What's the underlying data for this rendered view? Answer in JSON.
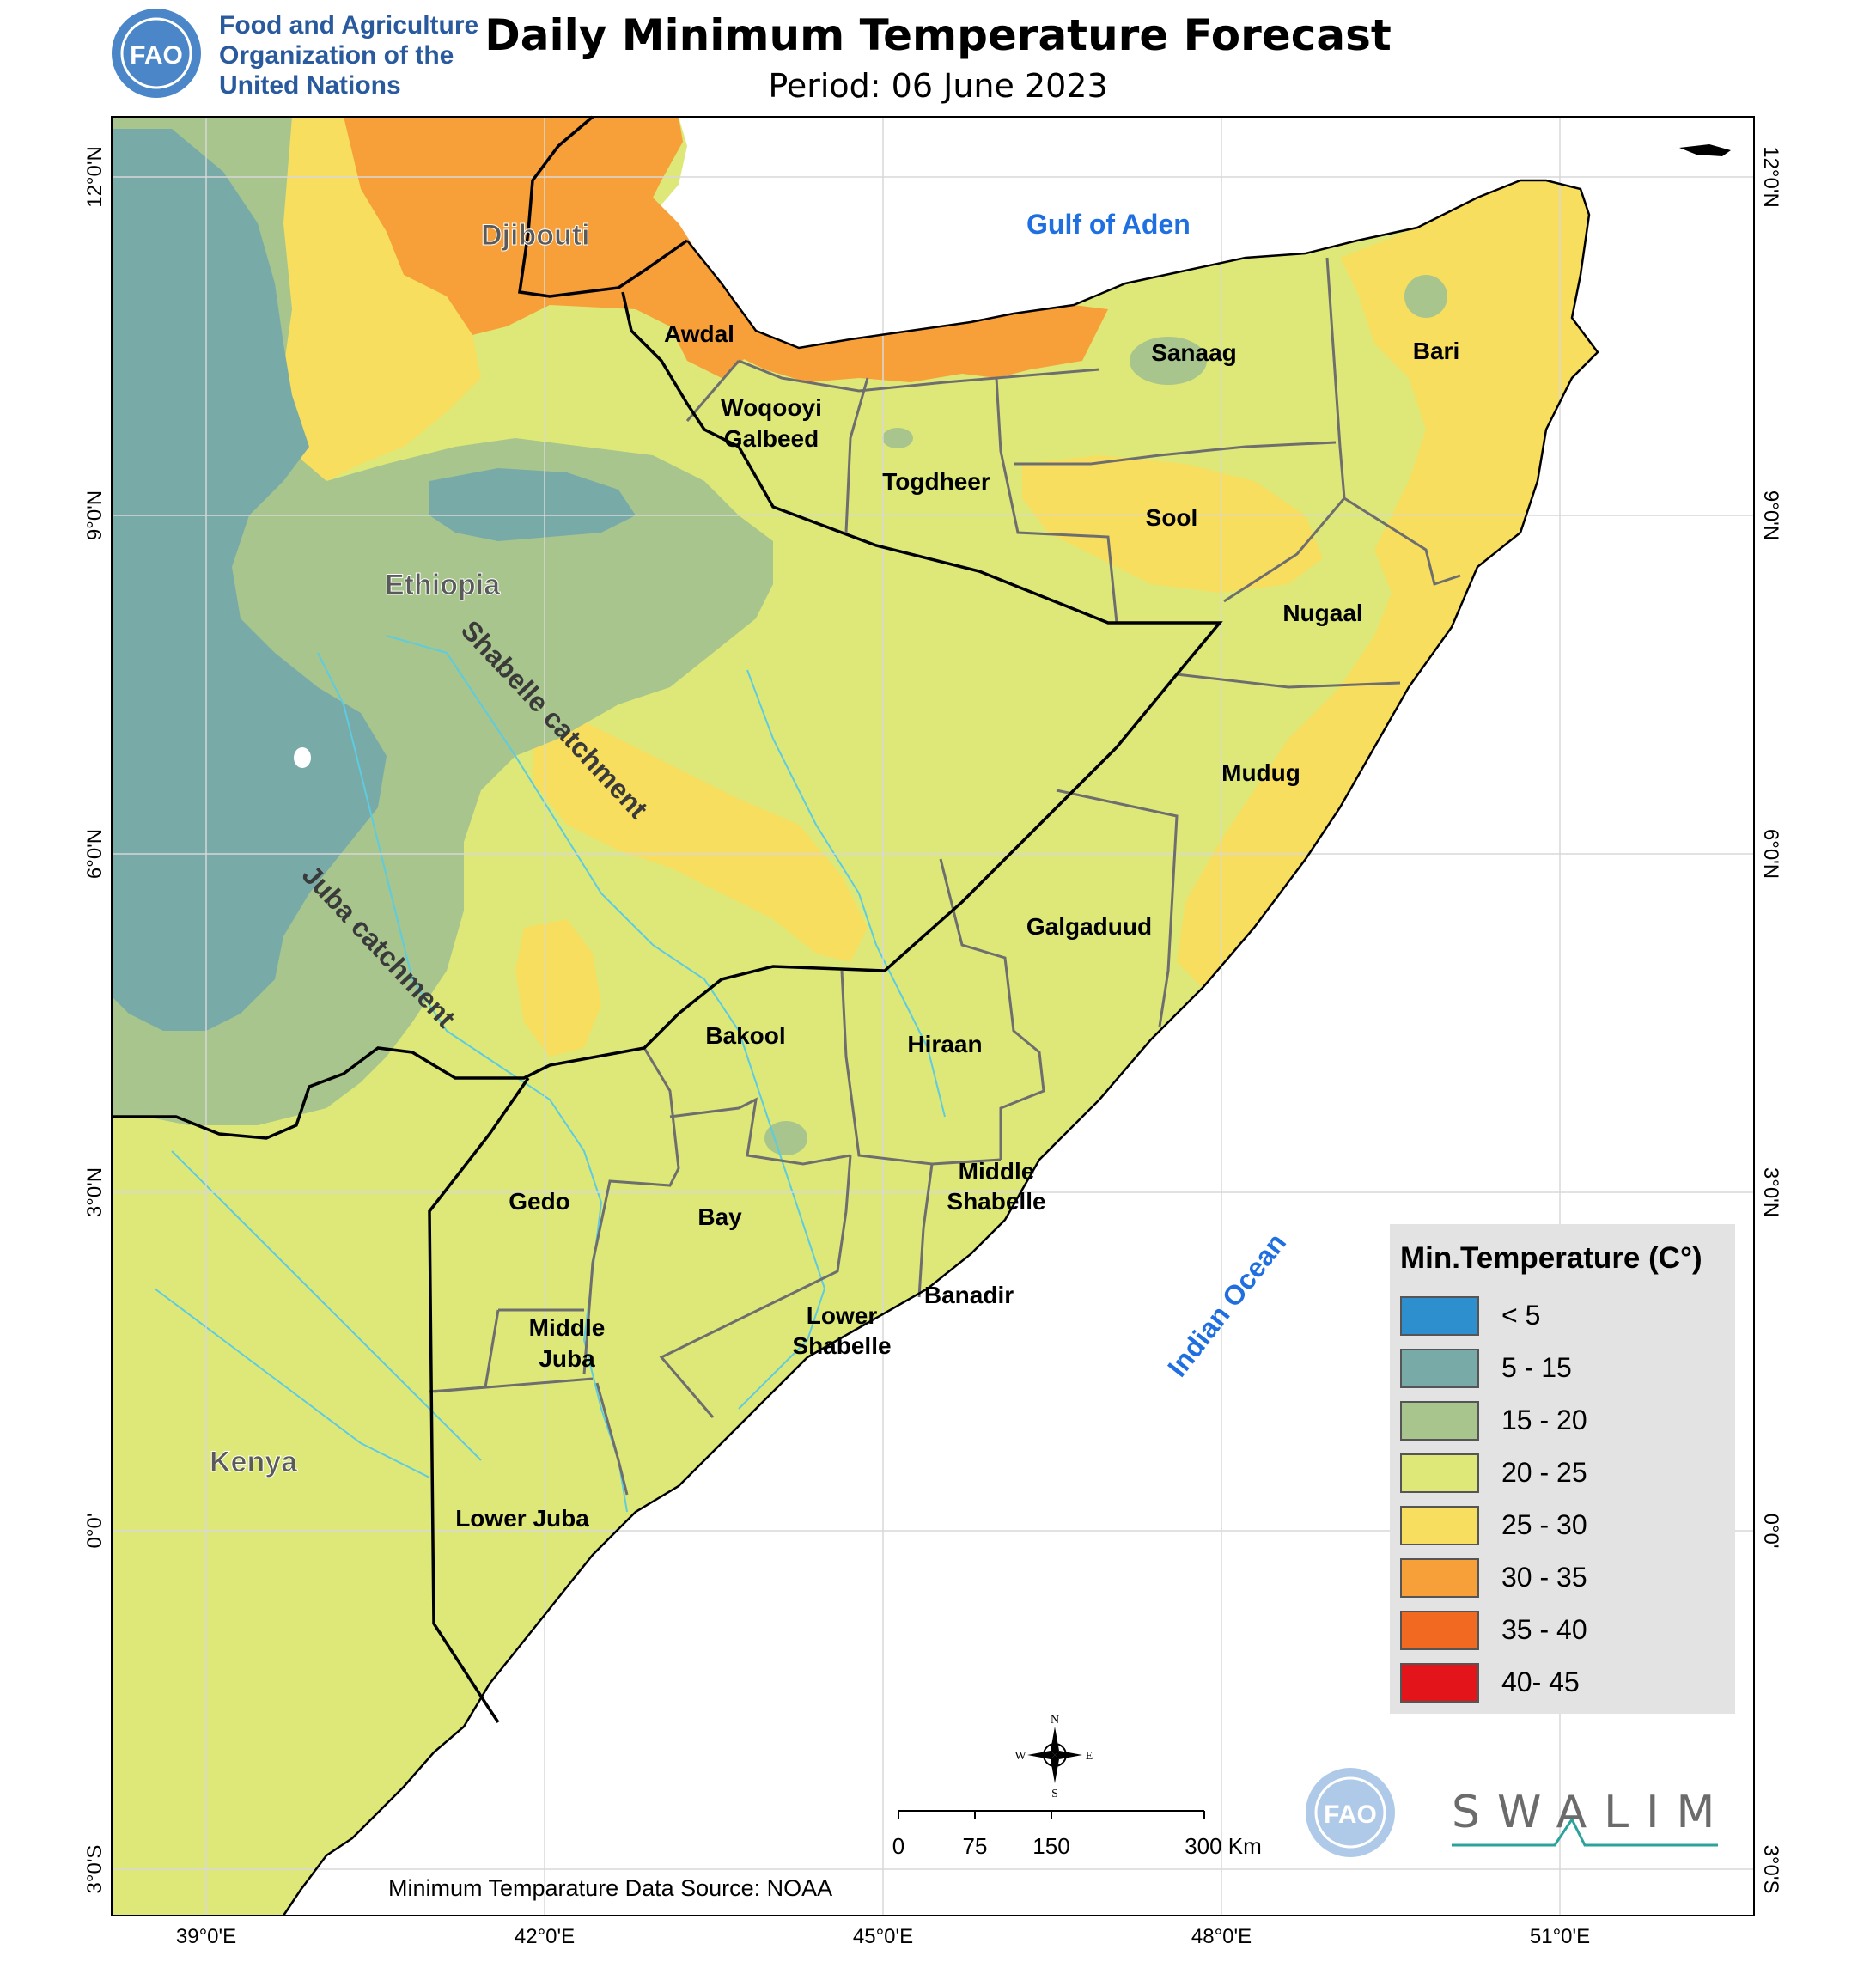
{
  "header": {
    "org_line1": "Food and Agriculture",
    "org_line2": "Organization of the",
    "org_line3": "United Nations",
    "fao_logo_text": "FAO",
    "title": "Daily Minimum Temperature Forecast",
    "subtitle": "Period: 06 June 2023"
  },
  "map": {
    "water_labels": [
      "Gulf of Aden",
      "Indian Ocean"
    ],
    "country_labels": [
      "Djibouti",
      "Ethiopia",
      "Kenya"
    ],
    "catchment_labels": [
      "Shabelle catchment",
      "Juba catchment"
    ],
    "region_labels": {
      "awdal": "Awdal",
      "woqooyi": [
        "Woqooyi",
        "Galbeed"
      ],
      "togdheer": "Togdheer",
      "sanaag": "Sanaag",
      "bari": "Bari",
      "sool": "Sool",
      "nugaal": "Nugaal",
      "mudug": "Mudug",
      "galgaduud": "Galgaduud",
      "bakool": "Bakool",
      "hiraan": "Hiraan",
      "middle_shabelle": [
        "Middle",
        "Shabelle"
      ],
      "gedo": "Gedo",
      "bay": "Bay",
      "banadir": "Banadir",
      "lower_shabelle": [
        "Lower",
        "Shabelle"
      ],
      "middle_juba": [
        "Middle",
        "Juba"
      ],
      "lower_juba": "Lower Juba"
    },
    "lat_ticks": [
      "12°0'N",
      "9°0'N",
      "6°0'N",
      "3°0'N",
      "0°0'",
      "3°0'S"
    ],
    "lon_ticks": [
      "39°0'E",
      "42°0'E",
      "45°0'E",
      "48°0'E",
      "51°0'E"
    ],
    "colors": {
      "water": "#ffffff",
      "c5_15": "#78aaa8",
      "c15_20": "#a7c58c",
      "c20_25": "#dde878",
      "c25_30": "#f8de5e",
      "c30_35": "#f7a03a",
      "boundary": "#000000",
      "region_line": "#6e6e6e",
      "river": "#5dcce0"
    }
  },
  "legend": {
    "title": "Min.Temperature (C°)",
    "items": [
      {
        "label": "< 5",
        "color": "#2e8fcf"
      },
      {
        "label": "5 - 15",
        "color": "#78aaa8"
      },
      {
        "label": "15 - 20",
        "color": "#a7c58c"
      },
      {
        "label": "20 - 25",
        "color": "#dde878"
      },
      {
        "label": "25 - 30",
        "color": "#f8de5e"
      },
      {
        "label": "30 - 35",
        "color": "#f7a03a"
      },
      {
        "label": "35 - 40",
        "color": "#f26a22"
      },
      {
        "label": "40- 45",
        "color": "#e3141a"
      }
    ]
  },
  "compass": {
    "n": "N",
    "s": "S",
    "e": "E",
    "w": "W"
  },
  "scale_bar": {
    "ticks": [
      "0",
      "75",
      "150",
      "300 Km"
    ]
  },
  "footer": {
    "source": "Minimum Temparature Data Source: NOAA",
    "swalim": "SWALIM"
  }
}
